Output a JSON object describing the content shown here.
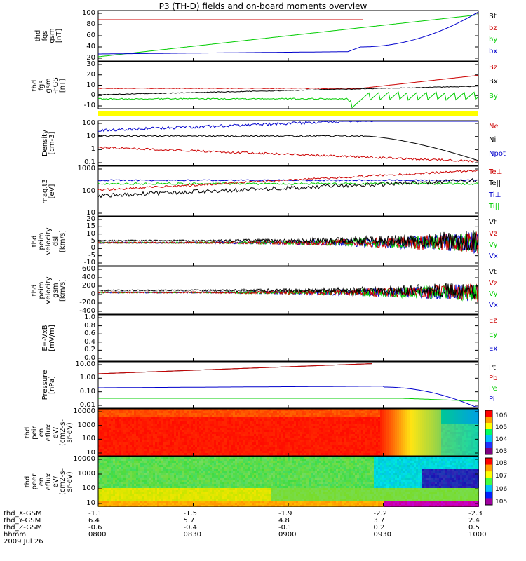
{
  "title": "P3 (TH-D) fields and on-board moments overview",
  "colors": {
    "black": "#000000",
    "red": "#cc0000",
    "green": "#00cc00",
    "blue": "#0000cc",
    "yellow": "#ffff00"
  },
  "chart_data": [
    {
      "type": "line",
      "ylabel": [
        "thd",
        "fgs",
        "gsm",
        "[nT]"
      ],
      "yticks": [
        "100",
        "80",
        "60",
        "40",
        "20"
      ],
      "legend": [
        {
          "name": "Bt",
          "color": "black"
        },
        {
          "name": "bz",
          "color": "red"
        },
        {
          "name": "by",
          "color": "green"
        },
        {
          "name": "bx",
          "color": "blue"
        }
      ]
    },
    {
      "type": "line",
      "ylabel": [
        "thd",
        "fgs",
        "gsm",
        "-FGS",
        "[nT]"
      ],
      "yticks": [
        "30",
        "20",
        "10",
        "0",
        "-10"
      ],
      "legend": [
        {
          "name": "Bz",
          "color": "red"
        },
        {
          "name": "Bx",
          "color": "black"
        },
        {
          "name": "By",
          "color": "green"
        }
      ]
    },
    {
      "type": "line",
      "ylabel": [
        "Density",
        "[cm-3]"
      ],
      "yticks": [
        "100",
        "10",
        "1",
        "0.1"
      ],
      "legend": [
        {
          "name": "Ne",
          "color": "red"
        },
        {
          "name": "Ni",
          "color": "black"
        },
        {
          "name": "Npot",
          "color": "blue"
        }
      ]
    },
    {
      "type": "line",
      "ylabel": [
        "mag.t3",
        "[eV]"
      ],
      "yticks": [
        "1000",
        "100",
        "10"
      ],
      "legend": [
        {
          "name": "Te⊥",
          "color": "red"
        },
        {
          "name": "Te||",
          "color": "black"
        },
        {
          "name": "Ti⊥",
          "color": "blue"
        },
        {
          "name": "Ti||",
          "color": "green"
        }
      ]
    },
    {
      "type": "line",
      "ylabel": [
        "thd",
        "peim",
        "velocity",
        "dsl",
        "[km/s]"
      ],
      "yticks": [
        "20",
        "15",
        "10",
        "5",
        "0",
        "-5",
        "-10"
      ],
      "legend": [
        {
          "name": "Vt",
          "color": "black"
        },
        {
          "name": "Vz",
          "color": "red"
        },
        {
          "name": "Vy",
          "color": "green"
        },
        {
          "name": "Vx",
          "color": "blue"
        }
      ]
    },
    {
      "type": "line",
      "ylabel": [
        "thd",
        "peim",
        "velocity",
        "gsm",
        "[km/s]"
      ],
      "yticks": [
        "600",
        "400",
        "200",
        "0",
        "-200",
        "-400"
      ],
      "legend": [
        {
          "name": "Vt",
          "color": "black"
        },
        {
          "name": "Vz",
          "color": "red"
        },
        {
          "name": "Vy",
          "color": "green"
        },
        {
          "name": "Vx",
          "color": "blue"
        }
      ]
    },
    {
      "type": "line",
      "ylabel": [
        "E=-VxB",
        "[mV/m]"
      ],
      "yticks": [
        "1.0",
        "0.8",
        "0.6",
        "0.4",
        "0.2",
        "0.0"
      ],
      "legend": [
        {
          "name": "Ez",
          "color": "red"
        },
        {
          "name": "Ey",
          "color": "green"
        },
        {
          "name": "Ex",
          "color": "blue"
        }
      ]
    },
    {
      "type": "line",
      "ylabel": [
        "Pressure",
        "[nPa]"
      ],
      "yticks": [
        "10.00",
        "1.00",
        "0.10",
        "0.01"
      ],
      "legend": [
        {
          "name": "Pt",
          "color": "black"
        },
        {
          "name": "Pb",
          "color": "red"
        },
        {
          "name": "Pe",
          "color": "green"
        },
        {
          "name": "Pi",
          "color": "blue"
        }
      ]
    },
    {
      "type": "heatmap",
      "ylabel": [
        "thd",
        "peir",
        "en",
        "eflux",
        "eV/",
        "(cm2-s-",
        "sr-eV)"
      ],
      "yticks": [
        "10000",
        "1000",
        "100",
        "10"
      ],
      "colorbar": [
        "10^6",
        "10^5",
        "10^4",
        "10^3"
      ]
    },
    {
      "type": "heatmap",
      "ylabel": [
        "thd",
        "peer",
        "en",
        "eflux",
        "eV/",
        "(cm2-s-",
        "sr-eV)"
      ],
      "yticks": [
        "10000",
        "1000",
        "100",
        "10"
      ],
      "colorbar": [
        "10^8",
        "10^7",
        "10^6",
        "10^5"
      ]
    }
  ],
  "footer": {
    "rows": [
      {
        "label": "thd_X-GSM",
        "values": [
          "-1.1",
          "-1.5",
          "-1.9",
          "-2.2",
          "-2.3"
        ]
      },
      {
        "label": "thd_Y-GSM",
        "values": [
          "6.4",
          "5.7",
          "4.8",
          "3.7",
          "2.4"
        ]
      },
      {
        "label": "thd_Z-GSM",
        "values": [
          "-0.6",
          "-0.4",
          "-0.1",
          "0.2",
          "0.5"
        ]
      },
      {
        "label": "hhmm",
        "values": [
          "0800",
          "0830",
          "0900",
          "0930",
          "1000"
        ]
      }
    ],
    "date": "2009 Jul 26"
  }
}
